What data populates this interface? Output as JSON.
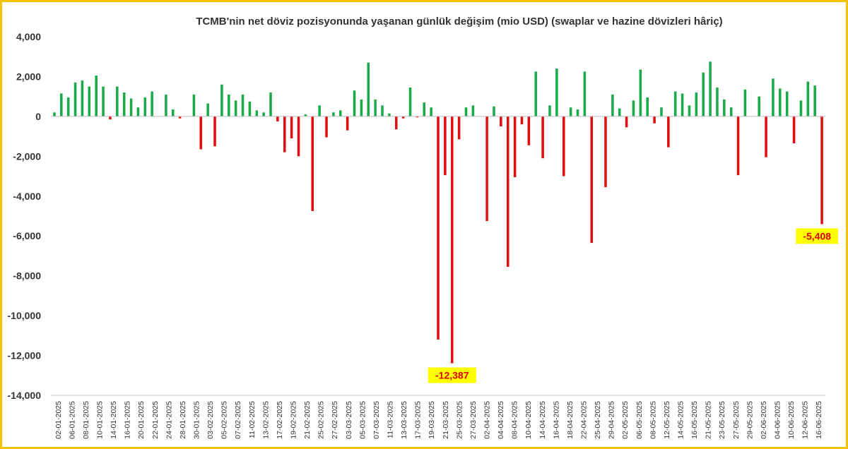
{
  "chart_data": {
    "type": "bar",
    "title": "TCMB'nin net döviz pozisyonunda yaşanan günlük değişim (mio USD) (swaplar ve hazine dövizleri hâriç)",
    "xlabel": "",
    "ylabel": "",
    "ylim": [
      -14000,
      4000
    ],
    "yticks": [
      4000,
      2000,
      0,
      -2000,
      -4000,
      -6000,
      -8000,
      -10000,
      -12000,
      -14000
    ],
    "ytick_labels": [
      "4,000",
      "2,000",
      "0",
      "-2,000",
      "-4,000",
      "-6,000",
      "-8,000",
      "-10,000",
      "-12,000",
      "-14,000"
    ],
    "grid": false,
    "legend": "none",
    "colors": {
      "positive": "#1aaa4a",
      "negative": "#e01010",
      "callout_bg": "#ffff00",
      "callout_text": "#e00000",
      "border": "#f2c200"
    },
    "x_tick_labels": [
      "02-01-2025",
      "06-01-2025",
      "08-01-2025",
      "10-01-2025",
      "14-01-2025",
      "16-01-2025",
      "20-01-2025",
      "22-01-2025",
      "24-01-2025",
      "28-01-2025",
      "30-01-2025",
      "03-02-2025",
      "05-02-2025",
      "07-02-2025",
      "11-02-2025",
      "13-02-2025",
      "17-02-2025",
      "19-02-2025",
      "21-02-2025",
      "25-02-2025",
      "27-02-2025",
      "03-03-2025",
      "05-03-2025",
      "07-03-2025",
      "11-03-2025",
      "13-03-2025",
      "17-03-2025",
      "19-03-2025",
      "21-03-2025",
      "25-03-2025",
      "27-03-2025",
      "02-04-2025",
      "04-04-2025",
      "08-04-2025",
      "10-04-2025",
      "14-04-2025",
      "16-04-2025",
      "18-04-2025",
      "22-04-2025",
      "25-04-2025",
      "29-04-2025",
      "02-05-2025",
      "06-05-2025",
      "08-05-2025",
      "12-05-2025",
      "14-05-2025",
      "16-05-2025",
      "21-05-2025",
      "23-05-2025",
      "27-05-2025",
      "29-05-2025",
      "02-06-2025",
      "04-06-2025",
      "10-06-2025",
      "12-06-2025",
      "16-06-2025"
    ],
    "values": [
      200,
      1150,
      950,
      1700,
      1800,
      1500,
      2050,
      1500,
      -150,
      1500,
      1200,
      900,
      450,
      950,
      1250,
      0,
      1100,
      350,
      -100,
      0,
      1100,
      -1650,
      650,
      -1500,
      1600,
      1100,
      800,
      1100,
      750,
      300,
      200,
      1200,
      -250,
      -1800,
      -1100,
      -2000,
      100,
      -4750,
      550,
      -1050,
      200,
      300,
      -700,
      1300,
      850,
      2700,
      850,
      550,
      150,
      -650,
      -100,
      1450,
      -50,
      700,
      450,
      -11200,
      -2950,
      -12387,
      -1150,
      450,
      550,
      0,
      -5250,
      500,
      -500,
      -7550,
      -3050,
      -400,
      -1450,
      2250,
      -2100,
      550,
      2400,
      -3000,
      450,
      350,
      2250,
      -6350,
      0,
      -3550,
      1100,
      400,
      -550,
      800,
      2350,
      950,
      -350,
      450,
      -1550,
      1250,
      1150,
      550,
      1200,
      2200,
      2750,
      1450,
      850,
      450,
      -2950,
      1350,
      0,
      1000,
      -2050,
      1900,
      1400,
      1250,
      -1350,
      800,
      1750,
      1550,
      -5408
    ],
    "annotations": [
      {
        "text": "-12,387",
        "value": -12387,
        "date": "24-03-2025"
      },
      {
        "text": "-5,408",
        "value": -5408,
        "date": "17-06-2025"
      }
    ]
  }
}
